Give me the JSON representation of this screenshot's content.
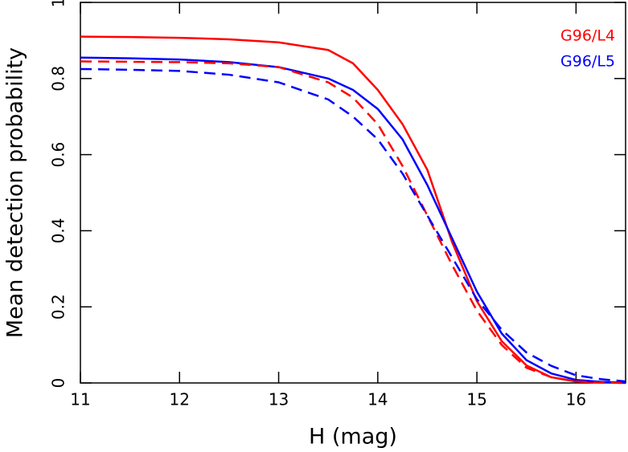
{
  "chart_data": {
    "type": "line",
    "xlabel": "H (mag)",
    "ylabel": "Mean detection probability",
    "x": [
      11,
      11.5,
      12,
      12.5,
      13,
      13.5,
      13.75,
      14,
      14.25,
      14.5,
      14.75,
      15,
      15.25,
      15.5,
      15.75,
      16,
      16.25,
      16.5
    ],
    "series": [
      {
        "name": "G96/L4",
        "color": "#ff0000",
        "dashed": false,
        "values": [
          0.91,
          0.909,
          0.907,
          0.903,
          0.895,
          0.875,
          0.84,
          0.77,
          0.68,
          0.56,
          0.37,
          0.215,
          0.11,
          0.046,
          0.015,
          0.004,
          0.001,
          0
        ]
      },
      {
        "name": "G96/L5",
        "color": "#0000ff",
        "dashed": false,
        "values": [
          0.855,
          0.853,
          0.85,
          0.843,
          0.83,
          0.8,
          0.77,
          0.72,
          0.64,
          0.52,
          0.38,
          0.24,
          0.13,
          0.06,
          0.025,
          0.008,
          0.003,
          0.001
        ]
      },
      {
        "color": "#ff0000",
        "dashed": true,
        "values": [
          0.845,
          0.844,
          0.843,
          0.84,
          0.83,
          0.79,
          0.75,
          0.68,
          0.57,
          0.44,
          0.31,
          0.19,
          0.1,
          0.04,
          0.015,
          0.004,
          0.001,
          0
        ]
      },
      {
        "color": "#0000ff",
        "dashed": true,
        "values": [
          0.825,
          0.823,
          0.82,
          0.81,
          0.79,
          0.745,
          0.7,
          0.64,
          0.55,
          0.44,
          0.33,
          0.22,
          0.14,
          0.08,
          0.045,
          0.02,
          0.01,
          0.004
        ]
      }
    ],
    "xlim": [
      11,
      16.5
    ],
    "xticks": [
      11,
      12,
      13,
      14,
      15,
      16
    ],
    "ylim": [
      0,
      1
    ],
    "yticks": [
      0,
      0.2,
      0.4,
      0.6,
      0.8,
      1
    ],
    "legend": "top-right"
  }
}
